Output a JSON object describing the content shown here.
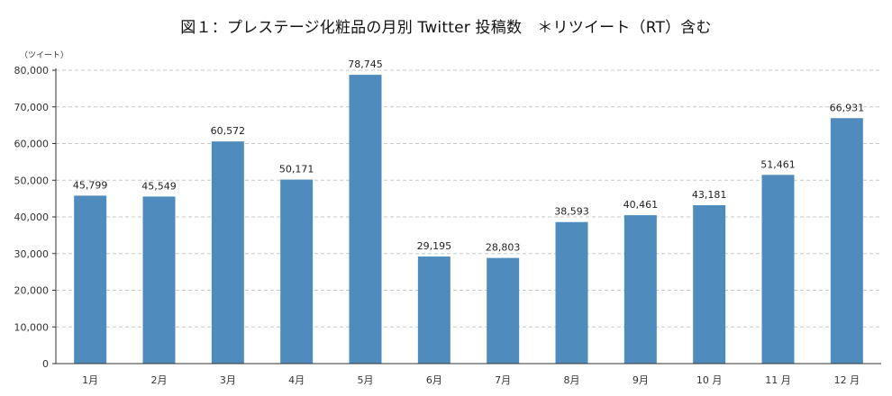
{
  "chart_data": {
    "type": "bar",
    "title": "図１：プレステージ化粧品の月別 Twitter 投稿数　＊リツイート（RT）含む",
    "ylabel": "（ツイート）",
    "xlabel": "",
    "categories": [
      "1月",
      "2月",
      "3月",
      "4月",
      "5月",
      "6月",
      "7月",
      "8月",
      "9月",
      "10 月",
      "11 月",
      "12 月"
    ],
    "values": [
      45799,
      45549,
      60572,
      50171,
      78745,
      29195,
      28803,
      38593,
      40461,
      43181,
      51461,
      66931
    ],
    "value_labels": [
      "45,799",
      "45,549",
      "60,572",
      "50,171",
      "78,745",
      "29,195",
      "28,803",
      "38,593",
      "40,461",
      "43,181",
      "51,461",
      "66,931"
    ],
    "y_ticks": [
      0,
      10000,
      20000,
      30000,
      40000,
      50000,
      60000,
      70000,
      80000
    ],
    "y_tick_labels": [
      "0",
      "10,000",
      "20,000",
      "30,000",
      "40,000",
      "50,000",
      "60,000",
      "70,000",
      "80,000"
    ],
    "ylim": [
      0,
      80000
    ],
    "grid": true,
    "legend": "none",
    "bar_color": "#4f8bbd",
    "grid_color": "#c8c8c8"
  }
}
